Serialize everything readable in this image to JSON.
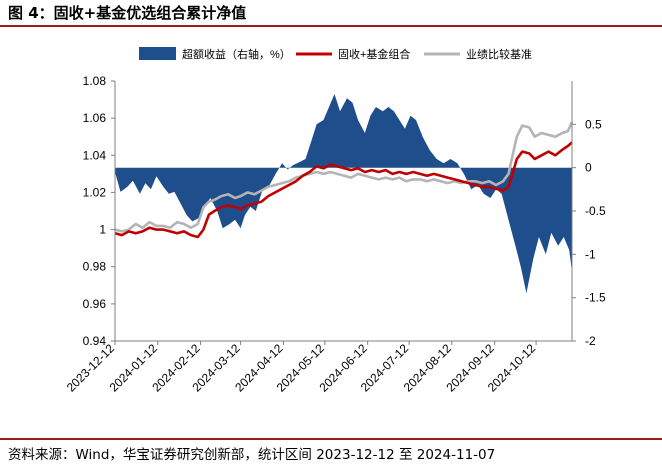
{
  "header": {
    "title": "图 4：固收+基金优选组合累计净值"
  },
  "footer": {
    "source": "资料来源：Wind，华宝证券研究创新部，统计区间 2023-12-12 至 2024-11-07"
  },
  "colors": {
    "excess": "#1f4e8c",
    "portfolio": "#c00000",
    "benchmark": "#b4b4b4",
    "rule": "#9b1c1c"
  },
  "chart_data": {
    "type": "line",
    "title": "图 4：固收+基金优选组合累计净值",
    "xlabel": "",
    "ylabel": "",
    "left_axis": {
      "ylim": [
        0.94,
        1.08
      ],
      "ticks": [
        0.94,
        0.96,
        0.98,
        1,
        1.02,
        1.04,
        1.06,
        1.08
      ],
      "tick_labels": [
        "0.94",
        "0.96",
        "0.98",
        "1",
        "1.02",
        "1.04",
        "1.06",
        "1.08"
      ]
    },
    "right_axis": {
      "ylim": [
        -2,
        1
      ],
      "ticks": [
        -2,
        -1.5,
        -1,
        -0.5,
        0,
        0.5
      ],
      "tick_labels": [
        "-2",
        "-1.5",
        "-1",
        "-0.5",
        "0",
        "0.5"
      ]
    },
    "x_ticks": [
      "2023-12-12",
      "2024-01-12",
      "2024-02-12",
      "2024-03-12",
      "2024-04-12",
      "2024-05-12",
      "2024-06-12",
      "2024-07-12",
      "2024-08-12",
      "2024-09-12",
      "2024-10-12"
    ],
    "x_range": [
      "2023-12-12",
      "2024-11-07"
    ],
    "grid": false,
    "legend_position": "top",
    "series": [
      {
        "name": "超额收益（右轴，%）",
        "type": "area",
        "axis": "right",
        "points": [
          [
            "2023-12-12",
            -0.05
          ],
          [
            "2023-12-16",
            -0.28
          ],
          [
            "2023-12-21",
            -0.22
          ],
          [
            "2023-12-25",
            -0.15
          ],
          [
            "2023-12-30",
            -0.3
          ],
          [
            "2024-01-03",
            -0.18
          ],
          [
            "2024-01-07",
            -0.25
          ],
          [
            "2024-01-11",
            -0.1
          ],
          [
            "2024-01-16",
            -0.22
          ],
          [
            "2024-01-20",
            -0.3
          ],
          [
            "2024-01-24",
            -0.28
          ],
          [
            "2024-01-28",
            -0.4
          ],
          [
            "2024-02-02",
            -0.55
          ],
          [
            "2024-02-06",
            -0.62
          ],
          [
            "2024-02-11",
            -0.58
          ],
          [
            "2024-02-15",
            -0.45
          ],
          [
            "2024-02-19",
            -0.35
          ],
          [
            "2024-02-24",
            -0.5
          ],
          [
            "2024-02-28",
            -0.7
          ],
          [
            "2024-03-04",
            -0.65
          ],
          [
            "2024-03-08",
            -0.6
          ],
          [
            "2024-03-12",
            -0.7
          ],
          [
            "2024-03-15",
            -0.55
          ],
          [
            "2024-03-19",
            -0.45
          ],
          [
            "2024-03-23",
            -0.5
          ],
          [
            "2024-03-28",
            -0.25
          ],
          [
            "2024-04-02",
            -0.2
          ],
          [
            "2024-04-06",
            -0.08
          ],
          [
            "2024-04-11",
            0.05
          ],
          [
            "2024-04-15",
            -0.02
          ],
          [
            "2024-04-19",
            0.03
          ],
          [
            "2024-04-23",
            0.06
          ],
          [
            "2024-04-28",
            0.1
          ],
          [
            "2024-05-02",
            0.3
          ],
          [
            "2024-05-06",
            0.5
          ],
          [
            "2024-05-11",
            0.55
          ],
          [
            "2024-05-15",
            0.7
          ],
          [
            "2024-05-19",
            0.85
          ],
          [
            "2024-05-23",
            0.65
          ],
          [
            "2024-05-28",
            0.8
          ],
          [
            "2024-06-01",
            0.75
          ],
          [
            "2024-06-05",
            0.55
          ],
          [
            "2024-06-10",
            0.4
          ],
          [
            "2024-06-14",
            0.6
          ],
          [
            "2024-06-18",
            0.7
          ],
          [
            "2024-06-23",
            0.65
          ],
          [
            "2024-06-27",
            0.7
          ],
          [
            "2024-07-01",
            0.65
          ],
          [
            "2024-07-05",
            0.55
          ],
          [
            "2024-07-09",
            0.45
          ],
          [
            "2024-07-13",
            0.6
          ],
          [
            "2024-07-17",
            0.55
          ],
          [
            "2024-07-22",
            0.35
          ],
          [
            "2024-07-27",
            0.2
          ],
          [
            "2024-08-01",
            0.1
          ],
          [
            "2024-08-06",
            0.05
          ],
          [
            "2024-08-11",
            0.1
          ],
          [
            "2024-08-16",
            0.05
          ],
          [
            "2024-08-21",
            -0.08
          ],
          [
            "2024-08-26",
            -0.25
          ],
          [
            "2024-08-31",
            -0.2
          ],
          [
            "2024-09-04",
            -0.3
          ],
          [
            "2024-09-09",
            -0.35
          ],
          [
            "2024-09-13",
            -0.25
          ],
          [
            "2024-09-17",
            -0.3
          ],
          [
            "2024-09-22",
            -0.6
          ],
          [
            "2024-09-27",
            -0.9
          ],
          [
            "2024-10-01",
            -1.15
          ],
          [
            "2024-10-05",
            -1.45
          ],
          [
            "2024-10-10",
            -1.05
          ],
          [
            "2024-10-14",
            -0.8
          ],
          [
            "2024-10-19",
            -1.0
          ],
          [
            "2024-10-23",
            -0.75
          ],
          [
            "2024-10-28",
            -0.9
          ],
          [
            "2024-11-01",
            -0.8
          ],
          [
            "2024-11-05",
            -0.95
          ],
          [
            "2024-11-07",
            -1.2
          ]
        ]
      },
      {
        "name": "固收+基金组合",
        "type": "line",
        "axis": "left",
        "points": [
          [
            "2023-12-12",
            0.998
          ],
          [
            "2023-12-17",
            0.997
          ],
          [
            "2023-12-22",
            0.999
          ],
          [
            "2023-12-27",
            0.998
          ],
          [
            "2024-01-01",
            0.999
          ],
          [
            "2024-01-06",
            1.001
          ],
          [
            "2024-01-11",
            1.0
          ],
          [
            "2024-01-16",
            1.0
          ],
          [
            "2024-01-21",
            0.999
          ],
          [
            "2024-01-26",
            0.998
          ],
          [
            "2024-01-31",
            0.999
          ],
          [
            "2024-02-05",
            0.997
          ],
          [
            "2024-02-10",
            0.996
          ],
          [
            "2024-02-14",
            1.0
          ],
          [
            "2024-02-18",
            1.008
          ],
          [
            "2024-02-22",
            1.01
          ],
          [
            "2024-02-27",
            1.012
          ],
          [
            "2024-03-03",
            1.013
          ],
          [
            "2024-03-08",
            1.012
          ],
          [
            "2024-03-12",
            1.011
          ],
          [
            "2024-03-17",
            1.013
          ],
          [
            "2024-03-22",
            1.014
          ],
          [
            "2024-03-27",
            1.015
          ],
          [
            "2024-04-01",
            1.018
          ],
          [
            "2024-04-06",
            1.02
          ],
          [
            "2024-04-11",
            1.022
          ],
          [
            "2024-04-16",
            1.024
          ],
          [
            "2024-04-21",
            1.026
          ],
          [
            "2024-04-26",
            1.029
          ],
          [
            "2024-05-01",
            1.031
          ],
          [
            "2024-05-06",
            1.034
          ],
          [
            "2024-05-11",
            1.033
          ],
          [
            "2024-05-16",
            1.035
          ],
          [
            "2024-05-21",
            1.034
          ],
          [
            "2024-05-26",
            1.033
          ],
          [
            "2024-05-31",
            1.032
          ],
          [
            "2024-06-05",
            1.033
          ],
          [
            "2024-06-10",
            1.031
          ],
          [
            "2024-06-15",
            1.032
          ],
          [
            "2024-06-20",
            1.031
          ],
          [
            "2024-06-25",
            1.032
          ],
          [
            "2024-06-30",
            1.03
          ],
          [
            "2024-07-05",
            1.031
          ],
          [
            "2024-07-10",
            1.03
          ],
          [
            "2024-07-15",
            1.031
          ],
          [
            "2024-07-20",
            1.03
          ],
          [
            "2024-07-25",
            1.029
          ],
          [
            "2024-07-30",
            1.03
          ],
          [
            "2024-08-04",
            1.029
          ],
          [
            "2024-08-09",
            1.028
          ],
          [
            "2024-08-14",
            1.027
          ],
          [
            "2024-08-19",
            1.026
          ],
          [
            "2024-08-24",
            1.025
          ],
          [
            "2024-08-29",
            1.024
          ],
          [
            "2024-09-03",
            1.023
          ],
          [
            "2024-09-08",
            1.023
          ],
          [
            "2024-09-13",
            1.022
          ],
          [
            "2024-09-18",
            1.021
          ],
          [
            "2024-09-22",
            1.023
          ],
          [
            "2024-09-25",
            1.03
          ],
          [
            "2024-09-28",
            1.038
          ],
          [
            "2024-10-02",
            1.042
          ],
          [
            "2024-10-07",
            1.041
          ],
          [
            "2024-10-11",
            1.038
          ],
          [
            "2024-10-16",
            1.04
          ],
          [
            "2024-10-21",
            1.042
          ],
          [
            "2024-10-26",
            1.04
          ],
          [
            "2024-10-31",
            1.043
          ],
          [
            "2024-11-04",
            1.045
          ],
          [
            "2024-11-07",
            1.047
          ]
        ]
      },
      {
        "name": "业绩比较基准",
        "type": "line",
        "axis": "left",
        "points": [
          [
            "2023-12-12",
            1.0
          ],
          [
            "2023-12-17",
            0.999
          ],
          [
            "2023-12-22",
            1.0
          ],
          [
            "2023-12-27",
            1.003
          ],
          [
            "2024-01-01",
            1.001
          ],
          [
            "2024-01-06",
            1.004
          ],
          [
            "2024-01-11",
            1.002
          ],
          [
            "2024-01-16",
            1.002
          ],
          [
            "2024-01-21",
            1.001
          ],
          [
            "2024-01-26",
            1.004
          ],
          [
            "2024-01-31",
            1.003
          ],
          [
            "2024-02-05",
            1.001
          ],
          [
            "2024-02-10",
            1.003
          ],
          [
            "2024-02-14",
            1.012
          ],
          [
            "2024-02-18",
            1.015
          ],
          [
            "2024-02-22",
            1.016
          ],
          [
            "2024-02-27",
            1.018
          ],
          [
            "2024-03-03",
            1.019
          ],
          [
            "2024-03-08",
            1.017
          ],
          [
            "2024-03-12",
            1.018
          ],
          [
            "2024-03-17",
            1.02
          ],
          [
            "2024-03-22",
            1.019
          ],
          [
            "2024-03-27",
            1.021
          ],
          [
            "2024-04-01",
            1.023
          ],
          [
            "2024-04-06",
            1.024
          ],
          [
            "2024-04-11",
            1.025
          ],
          [
            "2024-04-16",
            1.026
          ],
          [
            "2024-04-21",
            1.028
          ],
          [
            "2024-04-26",
            1.029
          ],
          [
            "2024-05-01",
            1.03
          ],
          [
            "2024-05-06",
            1.031
          ],
          [
            "2024-05-11",
            1.03
          ],
          [
            "2024-05-16",
            1.031
          ],
          [
            "2024-05-21",
            1.03
          ],
          [
            "2024-05-26",
            1.029
          ],
          [
            "2024-05-31",
            1.028
          ],
          [
            "2024-06-05",
            1.03
          ],
          [
            "2024-06-10",
            1.029
          ],
          [
            "2024-06-15",
            1.028
          ],
          [
            "2024-06-20",
            1.027
          ],
          [
            "2024-06-25",
            1.028
          ],
          [
            "2024-06-30",
            1.027
          ],
          [
            "2024-07-05",
            1.028
          ],
          [
            "2024-07-10",
            1.026
          ],
          [
            "2024-07-15",
            1.027
          ],
          [
            "2024-07-20",
            1.027
          ],
          [
            "2024-07-25",
            1.026
          ],
          [
            "2024-07-30",
            1.027
          ],
          [
            "2024-08-04",
            1.026
          ],
          [
            "2024-08-09",
            1.025
          ],
          [
            "2024-08-14",
            1.026
          ],
          [
            "2024-08-19",
            1.025
          ],
          [
            "2024-08-24",
            1.026
          ],
          [
            "2024-08-29",
            1.026
          ],
          [
            "2024-09-03",
            1.025
          ],
          [
            "2024-09-08",
            1.026
          ],
          [
            "2024-09-13",
            1.024
          ],
          [
            "2024-09-18",
            1.026
          ],
          [
            "2024-09-22",
            1.03
          ],
          [
            "2024-09-25",
            1.04
          ],
          [
            "2024-09-28",
            1.05
          ],
          [
            "2024-10-02",
            1.056
          ],
          [
            "2024-10-07",
            1.055
          ],
          [
            "2024-10-11",
            1.05
          ],
          [
            "2024-10-16",
            1.052
          ],
          [
            "2024-10-21",
            1.051
          ],
          [
            "2024-10-26",
            1.05
          ],
          [
            "2024-10-31",
            1.052
          ],
          [
            "2024-11-04",
            1.053
          ],
          [
            "2024-11-07",
            1.058
          ]
        ]
      }
    ]
  }
}
